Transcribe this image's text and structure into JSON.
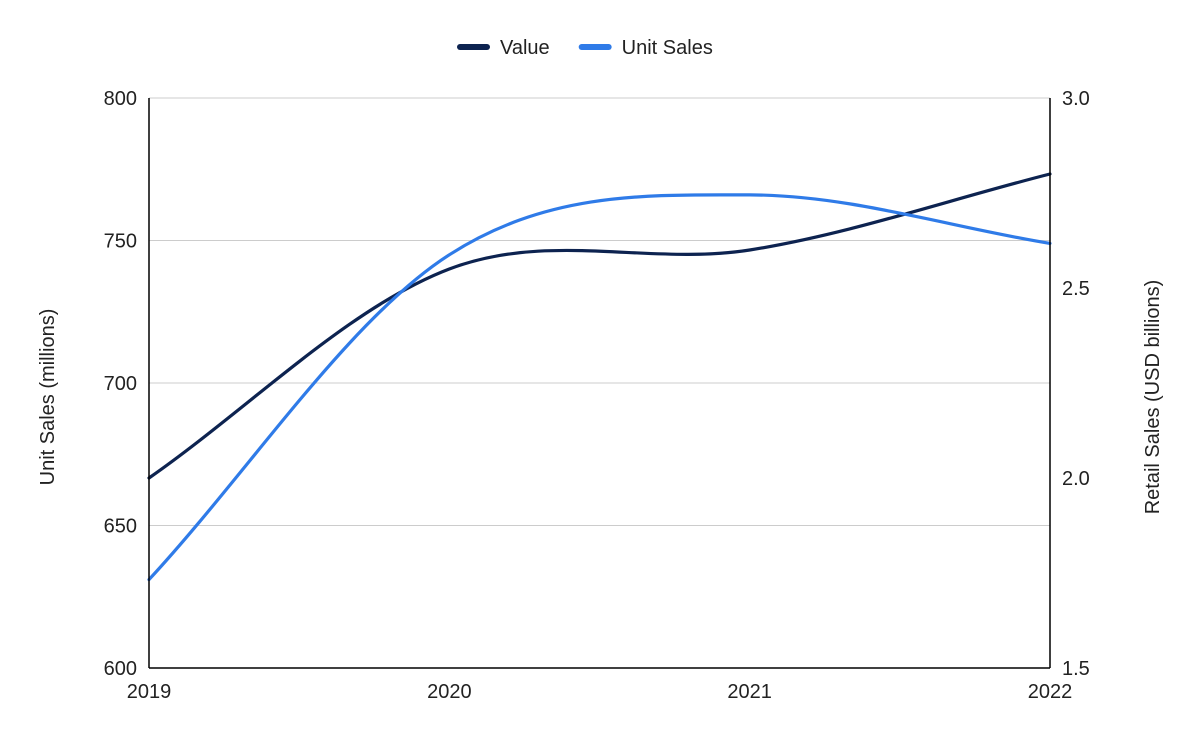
{
  "chart_data": {
    "type": "line",
    "x": [
      "2019",
      "2020",
      "2021",
      "2022"
    ],
    "series": [
      {
        "name": "Value",
        "axis": "right",
        "color": "#0d2350",
        "values": [
          2.0,
          2.55,
          2.6,
          2.8
        ]
      },
      {
        "name": "Unit Sales",
        "axis": "left",
        "color": "#2f7be8",
        "values": [
          631,
          745,
          766,
          749
        ]
      }
    ],
    "left_axis": {
      "label": "Unit Sales (millions)",
      "min": 600,
      "max": 800,
      "ticks": [
        600,
        650,
        700,
        750,
        800
      ]
    },
    "right_axis": {
      "label": "Retail Sales (USD billions)",
      "min": 1.5,
      "max": 3.0,
      "ticks": [
        "1.5",
        "2.0",
        "2.5",
        "3.0"
      ]
    },
    "grid": true,
    "legend": "top-center"
  }
}
